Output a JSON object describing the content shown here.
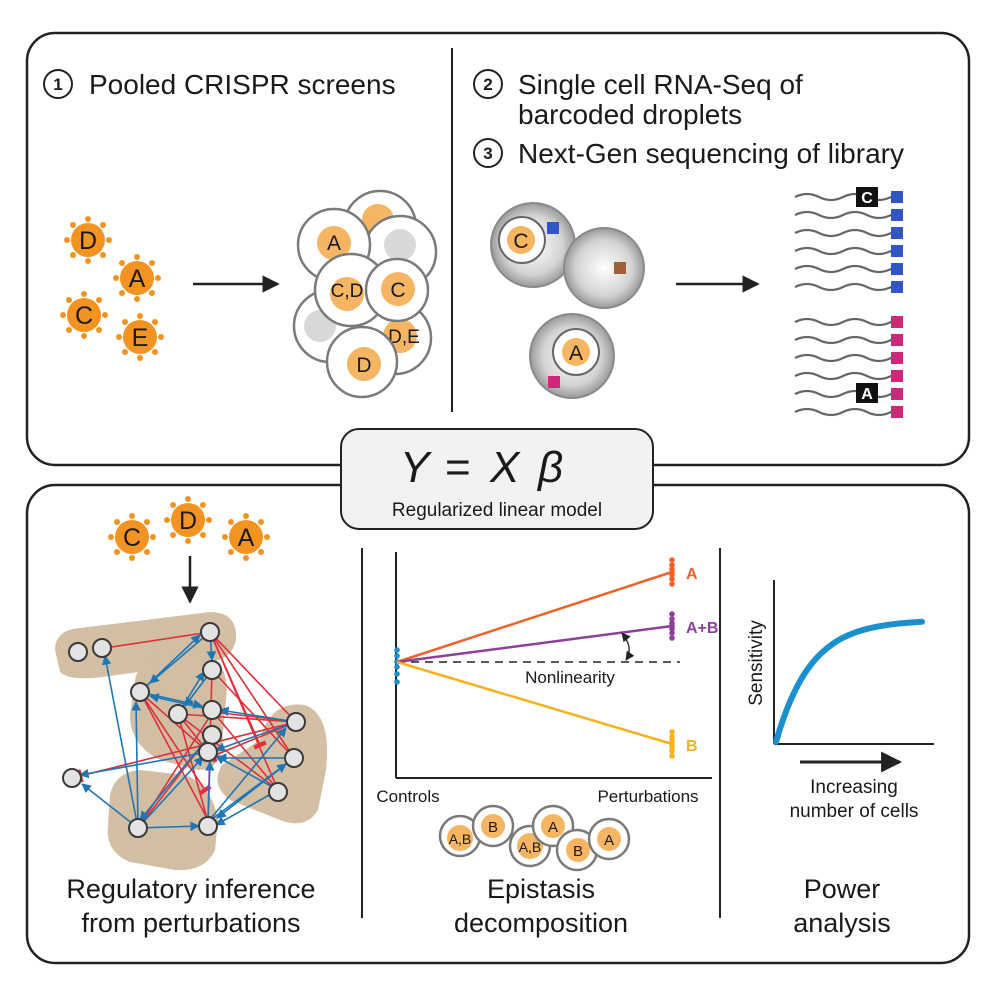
{
  "top_panel": {
    "step1": {
      "number": "1",
      "label": "Pooled CRISPR screens"
    },
    "step2": {
      "number": "2",
      "line1": "Single cell RNA-Seq of",
      "line2": "barcoded droplets"
    },
    "step3": {
      "number": "3",
      "label": "Next-Gen sequencing of library"
    },
    "viruses": [
      "D",
      "A",
      "C",
      "E"
    ],
    "cells": [
      "A",
      "C,D",
      "C",
      "D,E",
      "D"
    ],
    "droplets": [
      "C",
      "A"
    ],
    "read_tags": [
      "C",
      "A"
    ]
  },
  "model": {
    "equation_lhs": "Y",
    "equation_eq": "=",
    "equation_x": "X",
    "equation_beta": "β",
    "subtitle": "Regularized linear model"
  },
  "regulatory": {
    "viruses": [
      "C",
      "D",
      "A"
    ],
    "caption_line1": "Regulatory inference",
    "caption_line2": "from perturbations"
  },
  "epistasis": {
    "caption_line1": "Epistasis",
    "caption_line2": "decomposition",
    "cells": [
      "A,B",
      "B",
      "A,B",
      "A",
      "B",
      "A"
    ]
  },
  "chart_data": [
    {
      "type": "line",
      "x": [
        "Controls",
        "Perturbations"
      ],
      "series": [
        {
          "name": "A",
          "values": [
            0.0,
            0.9
          ],
          "color": "#f0622a"
        },
        {
          "name": "A+B",
          "values": [
            0.0,
            0.36
          ],
          "color": "#8e3f9b"
        },
        {
          "name": "B",
          "values": [
            0.0,
            -0.82
          ],
          "color": "#f6b21c"
        }
      ],
      "reference_line": 0.0,
      "annotation": "Nonlinearity",
      "xlabel_left": "Controls",
      "xlabel_right": "Perturbations",
      "ylim": [
        -1.1,
        1.0
      ]
    },
    {
      "type": "line",
      "ylabel": "Sensitivity",
      "xlabel_line1": "Increasing",
      "xlabel_line2": "number of cells",
      "curve": "saturating",
      "color": "#1c8fce"
    }
  ],
  "power": {
    "caption_line1": "Power",
    "caption_line2": "analysis"
  },
  "colors": {
    "virus": "#f39321",
    "nucleus": "#f5b562",
    "barcode_blue": "#3254c7",
    "barcode_magenta": "#d1277a",
    "barcode_brown": "#a0603a",
    "activation_edge": "#1e76b5",
    "repression_edge": "#e0303a",
    "module_shade": "#cdb89a"
  }
}
